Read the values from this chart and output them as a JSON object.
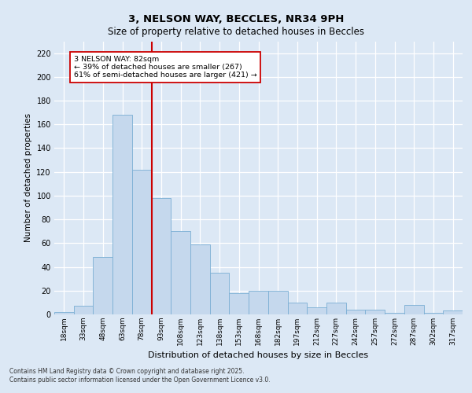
{
  "title1": "3, NELSON WAY, BECCLES, NR34 9PH",
  "title2": "Size of property relative to detached houses in Beccles",
  "xlabel": "Distribution of detached houses by size in Beccles",
  "ylabel": "Number of detached properties",
  "categories": [
    "18sqm",
    "33sqm",
    "48sqm",
    "63sqm",
    "78sqm",
    "93sqm",
    "108sqm",
    "123sqm",
    "138sqm",
    "153sqm",
    "168sqm",
    "182sqm",
    "197sqm",
    "212sqm",
    "227sqm",
    "242sqm",
    "257sqm",
    "272sqm",
    "287sqm",
    "302sqm",
    "317sqm"
  ],
  "values": [
    2,
    7,
    48,
    168,
    122,
    98,
    70,
    59,
    35,
    18,
    20,
    20,
    10,
    6,
    10,
    4,
    4,
    1,
    8,
    1,
    3
  ],
  "bar_color": "#c5d8ed",
  "bar_edge_color": "#7bafd4",
  "highlight_line_idx": 4,
  "highlight_line_color": "#cc0000",
  "annotation_text": "3 NELSON WAY: 82sqm\n← 39% of detached houses are smaller (267)\n61% of semi-detached houses are larger (421) →",
  "annotation_box_color": "#ffffff",
  "annotation_box_edge": "#cc0000",
  "bg_color": "#dce8f5",
  "plot_bg_color": "#dce8f5",
  "grid_color": "#ffffff",
  "ylim": [
    0,
    230
  ],
  "yticks": [
    0,
    20,
    40,
    60,
    80,
    100,
    120,
    140,
    160,
    180,
    200,
    220
  ],
  "footer": "Contains HM Land Registry data © Crown copyright and database right 2025.\nContains public sector information licensed under the Open Government Licence v3.0."
}
